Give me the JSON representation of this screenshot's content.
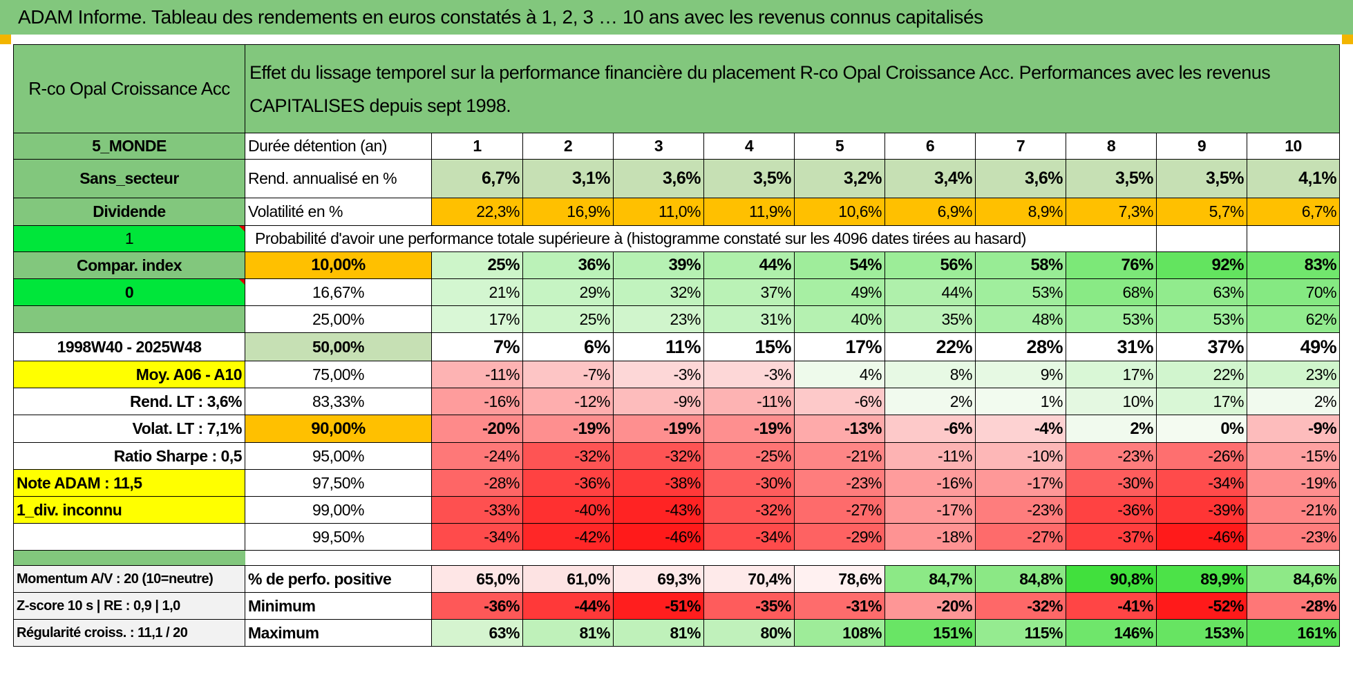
{
  "title": "ADAM Informe. Tableau des rendements en euros constatés à 1, 2, 3 … 10 ans avec les revenus connus capitalisés",
  "fund_name": "R-co Opal Croissance Acc",
  "description": "Effet du lissage temporel sur la performance financière du placement R-co Opal Croissance Acc. Performances avec les revenus CAPITALISES depuis sept 1998.",
  "sidebar": {
    "zone": "5_MONDE",
    "secteur": "Sans_secteur",
    "dividende": "Dividende",
    "flag1": "1",
    "compar": "Compar. index",
    "flag0": "0",
    "period": "1998W40 - 2025W48",
    "moy": "Moy. A06 - A10",
    "rend_lt": "Rend. LT :    3,6%",
    "volat_lt": "Volat. LT :    7,1%",
    "sharpe": "Ratio Sharpe :    0,5",
    "note": "Note ADAM : 11,5",
    "div": "1_div. inconnu"
  },
  "row_labels": {
    "duree": "Durée détention (an)",
    "rend": "Rend. annualisé en %",
    "vol": "Volatilité en %",
    "proba": "Probabilité d'avoir une performance totale supérieure à (histogramme constaté sur les 4096 dates tirées au hasard)"
  },
  "years": [
    "1",
    "2",
    "3",
    "4",
    "5",
    "6",
    "7",
    "8",
    "9",
    "10"
  ],
  "rend": [
    "6,7%",
    "3,1%",
    "3,6%",
    "3,5%",
    "3,2%",
    "3,4%",
    "3,6%",
    "3,5%",
    "3,5%",
    "4,1%"
  ],
  "vol": [
    "22,3%",
    "16,9%",
    "11,0%",
    "11,9%",
    "10,6%",
    "6,9%",
    "8,9%",
    "7,3%",
    "5,7%",
    "6,7%"
  ],
  "prob_rows": [
    {
      "label": "10,00%",
      "values": [
        "25%",
        "36%",
        "39%",
        "44%",
        "54%",
        "56%",
        "58%",
        "76%",
        "92%",
        "83%"
      ]
    },
    {
      "label": "16,67%",
      "values": [
        "21%",
        "29%",
        "32%",
        "37%",
        "49%",
        "44%",
        "53%",
        "68%",
        "63%",
        "70%"
      ]
    },
    {
      "label": "25,00%",
      "values": [
        "17%",
        "25%",
        "23%",
        "31%",
        "40%",
        "35%",
        "48%",
        "53%",
        "53%",
        "62%"
      ]
    },
    {
      "label": "50,00%",
      "values": [
        "7%",
        "6%",
        "11%",
        "15%",
        "17%",
        "22%",
        "28%",
        "31%",
        "37%",
        "49%"
      ]
    },
    {
      "label": "75,00%",
      "values": [
        "-11%",
        "-7%",
        "-3%",
        "-3%",
        "4%",
        "8%",
        "9%",
        "17%",
        "22%",
        "23%"
      ]
    },
    {
      "label": "83,33%",
      "values": [
        "-16%",
        "-12%",
        "-9%",
        "-11%",
        "-6%",
        "2%",
        "1%",
        "10%",
        "17%",
        "2%"
      ]
    },
    {
      "label": "90,00%",
      "values": [
        "-20%",
        "-19%",
        "-19%",
        "-19%",
        "-13%",
        "-6%",
        "-4%",
        "2%",
        "0%",
        "-9%"
      ]
    },
    {
      "label": "95,00%",
      "values": [
        "-24%",
        "-32%",
        "-32%",
        "-25%",
        "-21%",
        "-11%",
        "-10%",
        "-23%",
        "-26%",
        "-15%"
      ]
    },
    {
      "label": "97,50%",
      "values": [
        "-28%",
        "-36%",
        "-38%",
        "-30%",
        "-23%",
        "-16%",
        "-17%",
        "-30%",
        "-34%",
        "-19%"
      ]
    },
    {
      "label": "99,00%",
      "values": [
        "-33%",
        "-40%",
        "-43%",
        "-32%",
        "-27%",
        "-17%",
        "-23%",
        "-36%",
        "-39%",
        "-21%"
      ]
    },
    {
      "label": "99,50%",
      "values": [
        "-34%",
        "-42%",
        "-46%",
        "-34%",
        "-29%",
        "-18%",
        "-27%",
        "-37%",
        "-46%",
        "-23%"
      ]
    }
  ],
  "stats": [
    {
      "side": "Momentum A/V : 20 (10=neutre)",
      "label": "% de perfo. positive",
      "values": [
        "65,0%",
        "61,0%",
        "69,3%",
        "70,4%",
        "78,6%",
        "84,7%",
        "84,8%",
        "90,8%",
        "89,9%",
        "84,6%"
      ]
    },
    {
      "side": "Z-score 10 s | RE : 0,9 | 1,0",
      "label": "Minimum",
      "values": [
        "-36%",
        "-44%",
        "-51%",
        "-35%",
        "-31%",
        "-20%",
        "-32%",
        "-41%",
        "-52%",
        "-28%"
      ]
    },
    {
      "side": "Régularité croiss. : 11,1 / 20",
      "label": "Maximum",
      "values": [
        "63%",
        "81%",
        "81%",
        "80%",
        "108%",
        "151%",
        "115%",
        "146%",
        "153%",
        "161%"
      ]
    }
  ],
  "colors": {
    "header_green": "#82c77d",
    "light_green": "#c6e0b4",
    "bright_green": "#00e63a",
    "orange": "#ffc000",
    "yellow": "#ffff00",
    "red_text": "#e3001b"
  }
}
